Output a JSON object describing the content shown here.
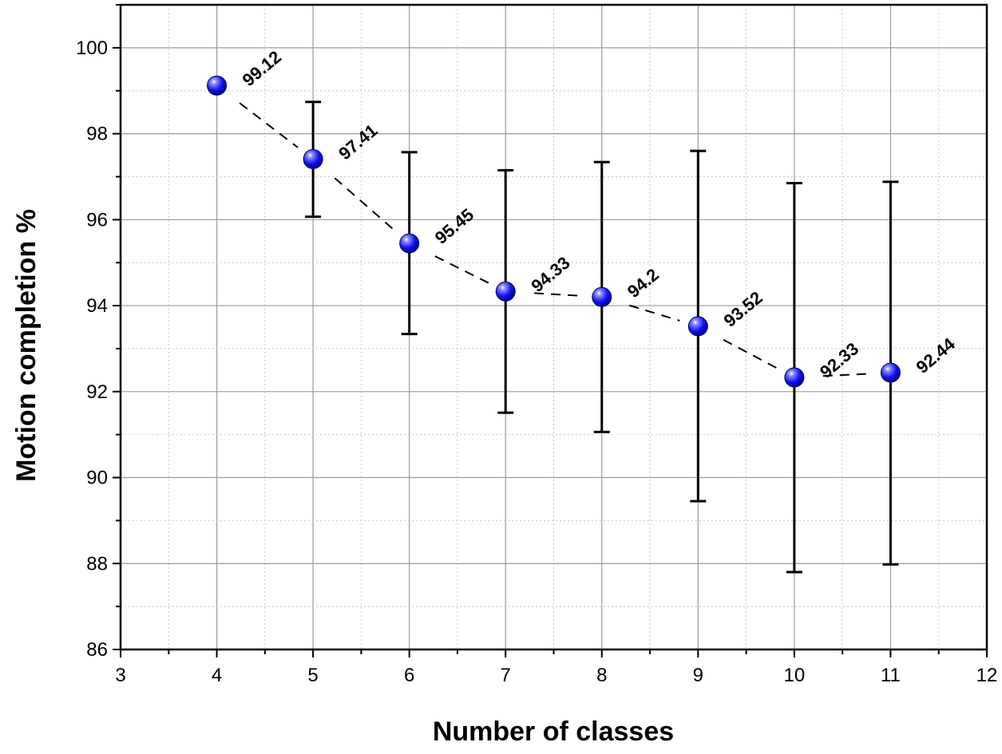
{
  "chart_data": {
    "type": "scatter",
    "title": "",
    "xlabel": "Number of classes",
    "ylabel": "Motion completion %",
    "xlim": [
      3,
      12
    ],
    "ylim": [
      86,
      101
    ],
    "x_ticks": [
      3,
      4,
      5,
      6,
      7,
      8,
      9,
      10,
      11,
      12
    ],
    "y_ticks": [
      86,
      88,
      90,
      92,
      94,
      96,
      98,
      100
    ],
    "grid": true,
    "series": [
      {
        "x": [
          4,
          5,
          6,
          7,
          8,
          9,
          10,
          11
        ],
        "values": [
          99.12,
          97.41,
          95.45,
          94.33,
          94.2,
          93.52,
          92.33,
          92.44
        ],
        "error_low": [
          null,
          96.07,
          93.34,
          91.51,
          91.06,
          89.45,
          87.8,
          87.98
        ],
        "error_high": [
          null,
          98.74,
          97.57,
          97.15,
          97.34,
          97.6,
          96.85,
          96.88
        ],
        "data_labels": [
          "99.12",
          "97.41",
          "95.45",
          "94.33",
          "94.2",
          "93.52",
          "92.33",
          "92.44"
        ],
        "marker_color": "#1010ee",
        "line_style": "dashed"
      }
    ]
  }
}
